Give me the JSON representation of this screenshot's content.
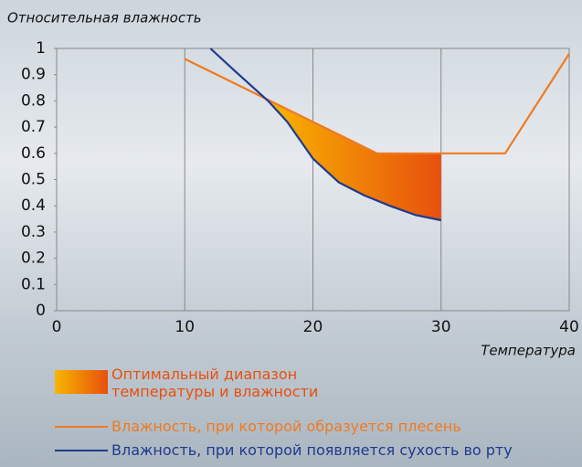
{
  "chart_data": {
    "type": "line",
    "title": "Относительная влажность",
    "x_label": "Температура",
    "xlim": [
      0,
      40
    ],
    "xticks": [
      0,
      10,
      20,
      30,
      40
    ],
    "ylim": [
      0,
      1
    ],
    "yticks": [
      0,
      0.1,
      0.2,
      0.3,
      0.4,
      0.5,
      0.6,
      0.7,
      0.8,
      0.9,
      1
    ],
    "grid": true,
    "range": {
      "name": "Оптимальный диапазон температуры и влажности",
      "x": [
        16.5,
        30
      ],
      "colors": [
        "#f7b500",
        "#e8500e"
      ]
    },
    "series": [
      {
        "name": "Влажность, при которой образуется плесень",
        "color": "#f07a22",
        "x": [
          10,
          25,
          35,
          40
        ],
        "values": [
          0.96,
          0.6,
          0.6,
          0.98
        ]
      },
      {
        "name": "Влажность, при которой появляется сухость во рту",
        "color": "#1f3a8f",
        "x": [
          12,
          14,
          16.5,
          18,
          20,
          22,
          24,
          26,
          28,
          30
        ],
        "values": [
          1.0,
          0.91,
          0.8,
          0.72,
          0.58,
          0.49,
          0.44,
          0.4,
          0.365,
          0.345
        ]
      }
    ]
  }
}
